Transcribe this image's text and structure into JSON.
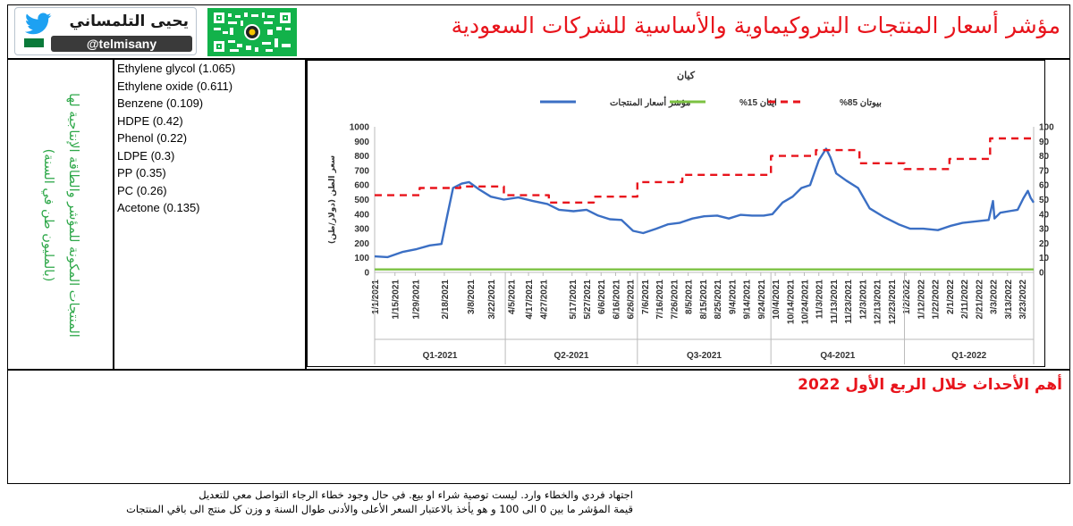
{
  "header": {
    "title": "مؤشر أسعار المنتجات البتروكيماوية والأساسية للشركات السعودية",
    "author_name": "يحيى التلمساني",
    "author_handle": "@telmisany"
  },
  "side_label": "المنتجات المكونة للمؤشر والطاقة الإنتاجية لها (بالمليون طن في السنة)",
  "products": [
    "Ethylene glycol (1.065)",
    "Ethylene oxide (0.611)",
    "Benzene (0.109)",
    "HDPE (0.42)",
    "Phenol (0.22)",
    "LDPE (0.3)",
    "PP (0.35)",
    "PC (0.26)",
    "Acetone (0.135)"
  ],
  "events_title": "أهم الأحداث خلال الربع الأول 2022",
  "notes": [
    "اجتهاد فردي والخطاء وارد. ليست توصية شراء او بيع. في حال وجود خطاء الرجاء التواصل معي للتعديل",
    "قيمة المؤشر ما بين 0 الى 100 و هو يأخذ بالاعتبار السعر الأعلى والأدنى طوال السنة و وزن كل منتج الى باقي المنتجات"
  ],
  "colors": {
    "index": "#3b6fc4",
    "ethane": "#7cc242",
    "butane": "#e8141c",
    "title": "#e8141c",
    "green_text": "#2fa84a"
  },
  "chart_data": {
    "type": "line",
    "title": "كيان",
    "ylabel": "سعر الطن (دولار/طن)",
    "ylim": [
      0,
      1000
    ],
    "y2lim": [
      0,
      100
    ],
    "yticks": [
      0,
      100,
      200,
      300,
      400,
      500,
      600,
      700,
      800,
      900,
      1000
    ],
    "y2ticks": [
      0,
      10,
      20,
      30,
      40,
      50,
      60,
      70,
      80,
      90,
      100
    ],
    "xlim": [
      "1/1/2021",
      "3/31/2022"
    ],
    "x_tick_labels": [
      "1/1/2021",
      "1/15/2021",
      "1/29/2021",
      "2/18/2021",
      "3/8/2021",
      "3/22/2021",
      "4/5/2021",
      "4/17/2021",
      "4/27/2021",
      "5/17/2021",
      "5/27/2021",
      "6/6/2021",
      "6/16/2021",
      "6/26/2021",
      "7/6/2021",
      "7/16/2021",
      "7/26/2021",
      "8/5/2021",
      "8/15/2021",
      "8/25/2021",
      "9/4/2021",
      "9/14/2021",
      "9/24/2021",
      "10/4/2021",
      "10/14/2021",
      "10/24/2021",
      "11/3/2021",
      "11/13/2021",
      "11/23/2021",
      "12/3/2021",
      "12/13/2021",
      "12/23/2021",
      "1/2/2022",
      "1/12/2022",
      "1/22/2022",
      "2/1/2022",
      "2/11/2022",
      "2/21/2022",
      "3/3/2022",
      "3/13/2022",
      "3/23/2022"
    ],
    "quarters": [
      "Q1-2021",
      "Q2-2021",
      "Q3-2021",
      "Q4-2021",
      "Q1-2022"
    ],
    "quarter_bounds": [
      "1/1/2021",
      "4/1/2021",
      "7/1/2021",
      "10/1/2021",
      "1/1/2022",
      "3/31/2022"
    ],
    "legend_position": "top",
    "grid": false,
    "series": [
      {
        "name": "مؤشر أسعار المنتجات",
        "axis": "left",
        "style": "solid",
        "points": [
          [
            "1/1/2021",
            110
          ],
          [
            "1/10/2021",
            105
          ],
          [
            "1/20/2021",
            140
          ],
          [
            "1/30/2021",
            160
          ],
          [
            "2/8/2021",
            185
          ],
          [
            "2/16/2021",
            195
          ],
          [
            "2/20/2021",
            390
          ],
          [
            "2/24/2021",
            580
          ],
          [
            "3/2/2021",
            610
          ],
          [
            "3/7/2021",
            620
          ],
          [
            "3/14/2021",
            570
          ],
          [
            "3/22/2021",
            520
          ],
          [
            "3/31/2021",
            500
          ],
          [
            "4/10/2021",
            515
          ],
          [
            "4/20/2021",
            490
          ],
          [
            "4/30/2021",
            470
          ],
          [
            "5/8/2021",
            430
          ],
          [
            "5/18/2021",
            420
          ],
          [
            "5/27/2021",
            430
          ],
          [
            "6/4/2021",
            390
          ],
          [
            "6/12/2021",
            365
          ],
          [
            "6/20/2021",
            360
          ],
          [
            "6/28/2021",
            285
          ],
          [
            "7/5/2021",
            270
          ],
          [
            "7/14/2021",
            300
          ],
          [
            "7/22/2021",
            330
          ],
          [
            "7/30/2021",
            340
          ],
          [
            "8/8/2021",
            370
          ],
          [
            "8/16/2021",
            385
          ],
          [
            "8/25/2021",
            390
          ],
          [
            "9/2/2021",
            370
          ],
          [
            "9/10/2021",
            395
          ],
          [
            "9/18/2021",
            390
          ],
          [
            "9/26/2021",
            390
          ],
          [
            "10/2/2021",
            400
          ],
          [
            "10/9/2021",
            480
          ],
          [
            "10/16/2021",
            520
          ],
          [
            "10/22/2021",
            580
          ],
          [
            "10/28/2021",
            600
          ],
          [
            "11/3/2021",
            770
          ],
          [
            "11/8/2021",
            850
          ],
          [
            "11/11/2021",
            790
          ],
          [
            "11/15/2021",
            680
          ],
          [
            "11/22/2021",
            630
          ],
          [
            "11/30/2021",
            580
          ],
          [
            "12/8/2021",
            440
          ],
          [
            "12/18/2021",
            380
          ],
          [
            "12/28/2021",
            330
          ],
          [
            "1/5/2022",
            300
          ],
          [
            "1/14/2022",
            300
          ],
          [
            "1/24/2022",
            290
          ],
          [
            "2/2/2022",
            320
          ],
          [
            "2/10/2022",
            340
          ],
          [
            "2/19/2022",
            350
          ],
          [
            "2/28/2022",
            360
          ],
          [
            "3/3/2022",
            490
          ],
          [
            "3/4/2022",
            370
          ],
          [
            "3/8/2022",
            410
          ],
          [
            "3/14/2022",
            420
          ],
          [
            "3/20/2022",
            430
          ],
          [
            "3/24/2022",
            510
          ],
          [
            "3/27/2022",
            560
          ],
          [
            "3/29/2022",
            510
          ],
          [
            "3/31/2022",
            480
          ]
        ]
      },
      {
        "name": "ايثان 15%",
        "axis": "right",
        "style": "solid",
        "points": [
          [
            "1/1/2021",
            2
          ],
          [
            "3/31/2022",
            2
          ]
        ]
      },
      {
        "name": "بيوتان 85%",
        "axis": "right",
        "style": "dashed",
        "points": [
          [
            "1/1/2021",
            53
          ],
          [
            "2/1/2021",
            53
          ],
          [
            "2/1/2021",
            58
          ],
          [
            "3/1/2021",
            58
          ],
          [
            "3/1/2021",
            59
          ],
          [
            "3/31/2021",
            59
          ],
          [
            "3/31/2021",
            53
          ],
          [
            "5/1/2021",
            53
          ],
          [
            "5/1/2021",
            48
          ],
          [
            "6/1/2021",
            48
          ],
          [
            "6/1/2021",
            52
          ],
          [
            "7/1/2021",
            52
          ],
          [
            "7/1/2021",
            62
          ],
          [
            "8/1/2021",
            62
          ],
          [
            "8/1/2021",
            67
          ],
          [
            "9/1/2021",
            67
          ],
          [
            "9/1/2021",
            67
          ],
          [
            "10/1/2021",
            67
          ],
          [
            "10/1/2021",
            80
          ],
          [
            "11/1/2021",
            80
          ],
          [
            "11/1/2021",
            84
          ],
          [
            "12/1/2021",
            84
          ],
          [
            "12/1/2021",
            75
          ],
          [
            "1/1/2022",
            75
          ],
          [
            "1/1/2022",
            71
          ],
          [
            "2/1/2022",
            71
          ],
          [
            "2/1/2022",
            78
          ],
          [
            "3/1/2022",
            78
          ],
          [
            "3/1/2022",
            92
          ],
          [
            "3/31/2022",
            92
          ]
        ]
      }
    ]
  }
}
